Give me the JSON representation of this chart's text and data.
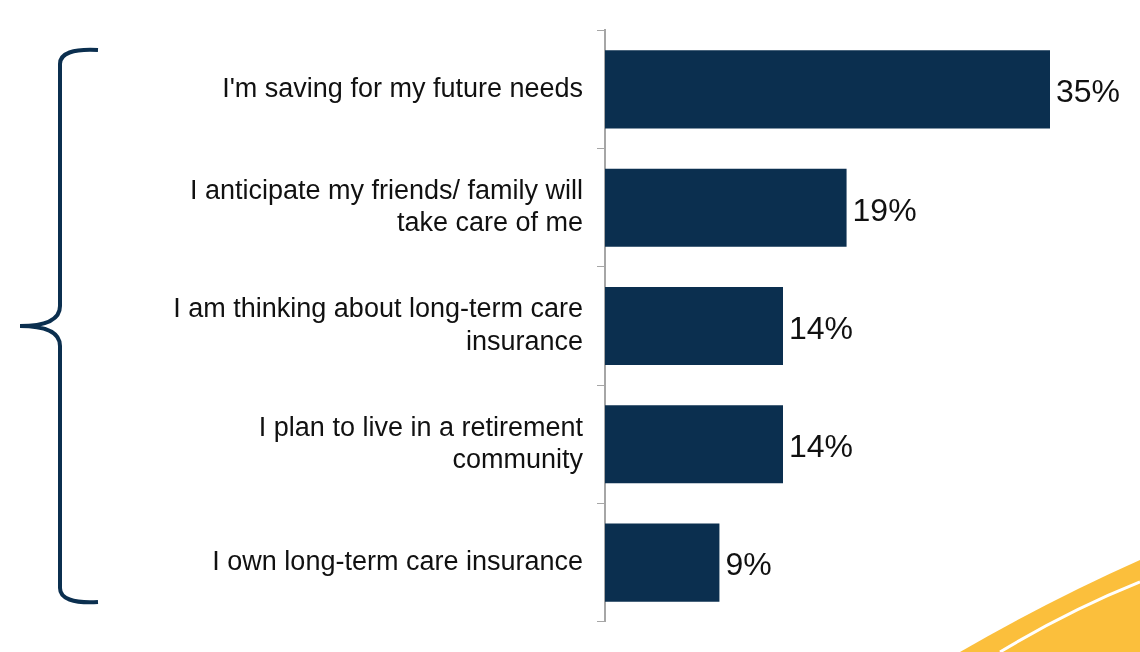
{
  "chart_data": {
    "type": "bar",
    "orientation": "horizontal",
    "categories": [
      "I'm saving for my future needs",
      "I anticipate my friends/ family will take care of me",
      "I am thinking about long-term care insurance",
      "I plan to live in a retirement community",
      "I own long-term care insurance"
    ],
    "values": [
      35,
      19,
      14,
      14,
      9
    ],
    "value_labels": [
      "35%",
      "19%",
      "14%",
      "14%",
      "9%"
    ],
    "color": "#0b2f4f",
    "grid": false,
    "legend": false,
    "tick_labels": "y"
  }
}
